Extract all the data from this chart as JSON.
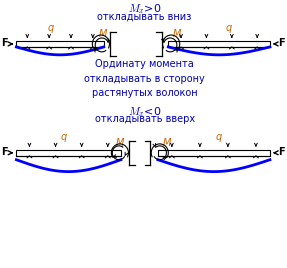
{
  "title_top": "$M_x$>0",
  "subtitle_top": "откладывать вниз",
  "middle_text": "Ординату момента\nоткладывать в сторону\nрастянутых волокон",
  "title_bot": "$M_x$<0",
  "subtitle_bot": "откладывать вверх",
  "tc": "#0000bb",
  "bc": "#0000ff",
  "lc": "#000000",
  "oc": "#cc6600",
  "fig_w": 2.87,
  "fig_h": 2.68,
  "dpi": 100
}
